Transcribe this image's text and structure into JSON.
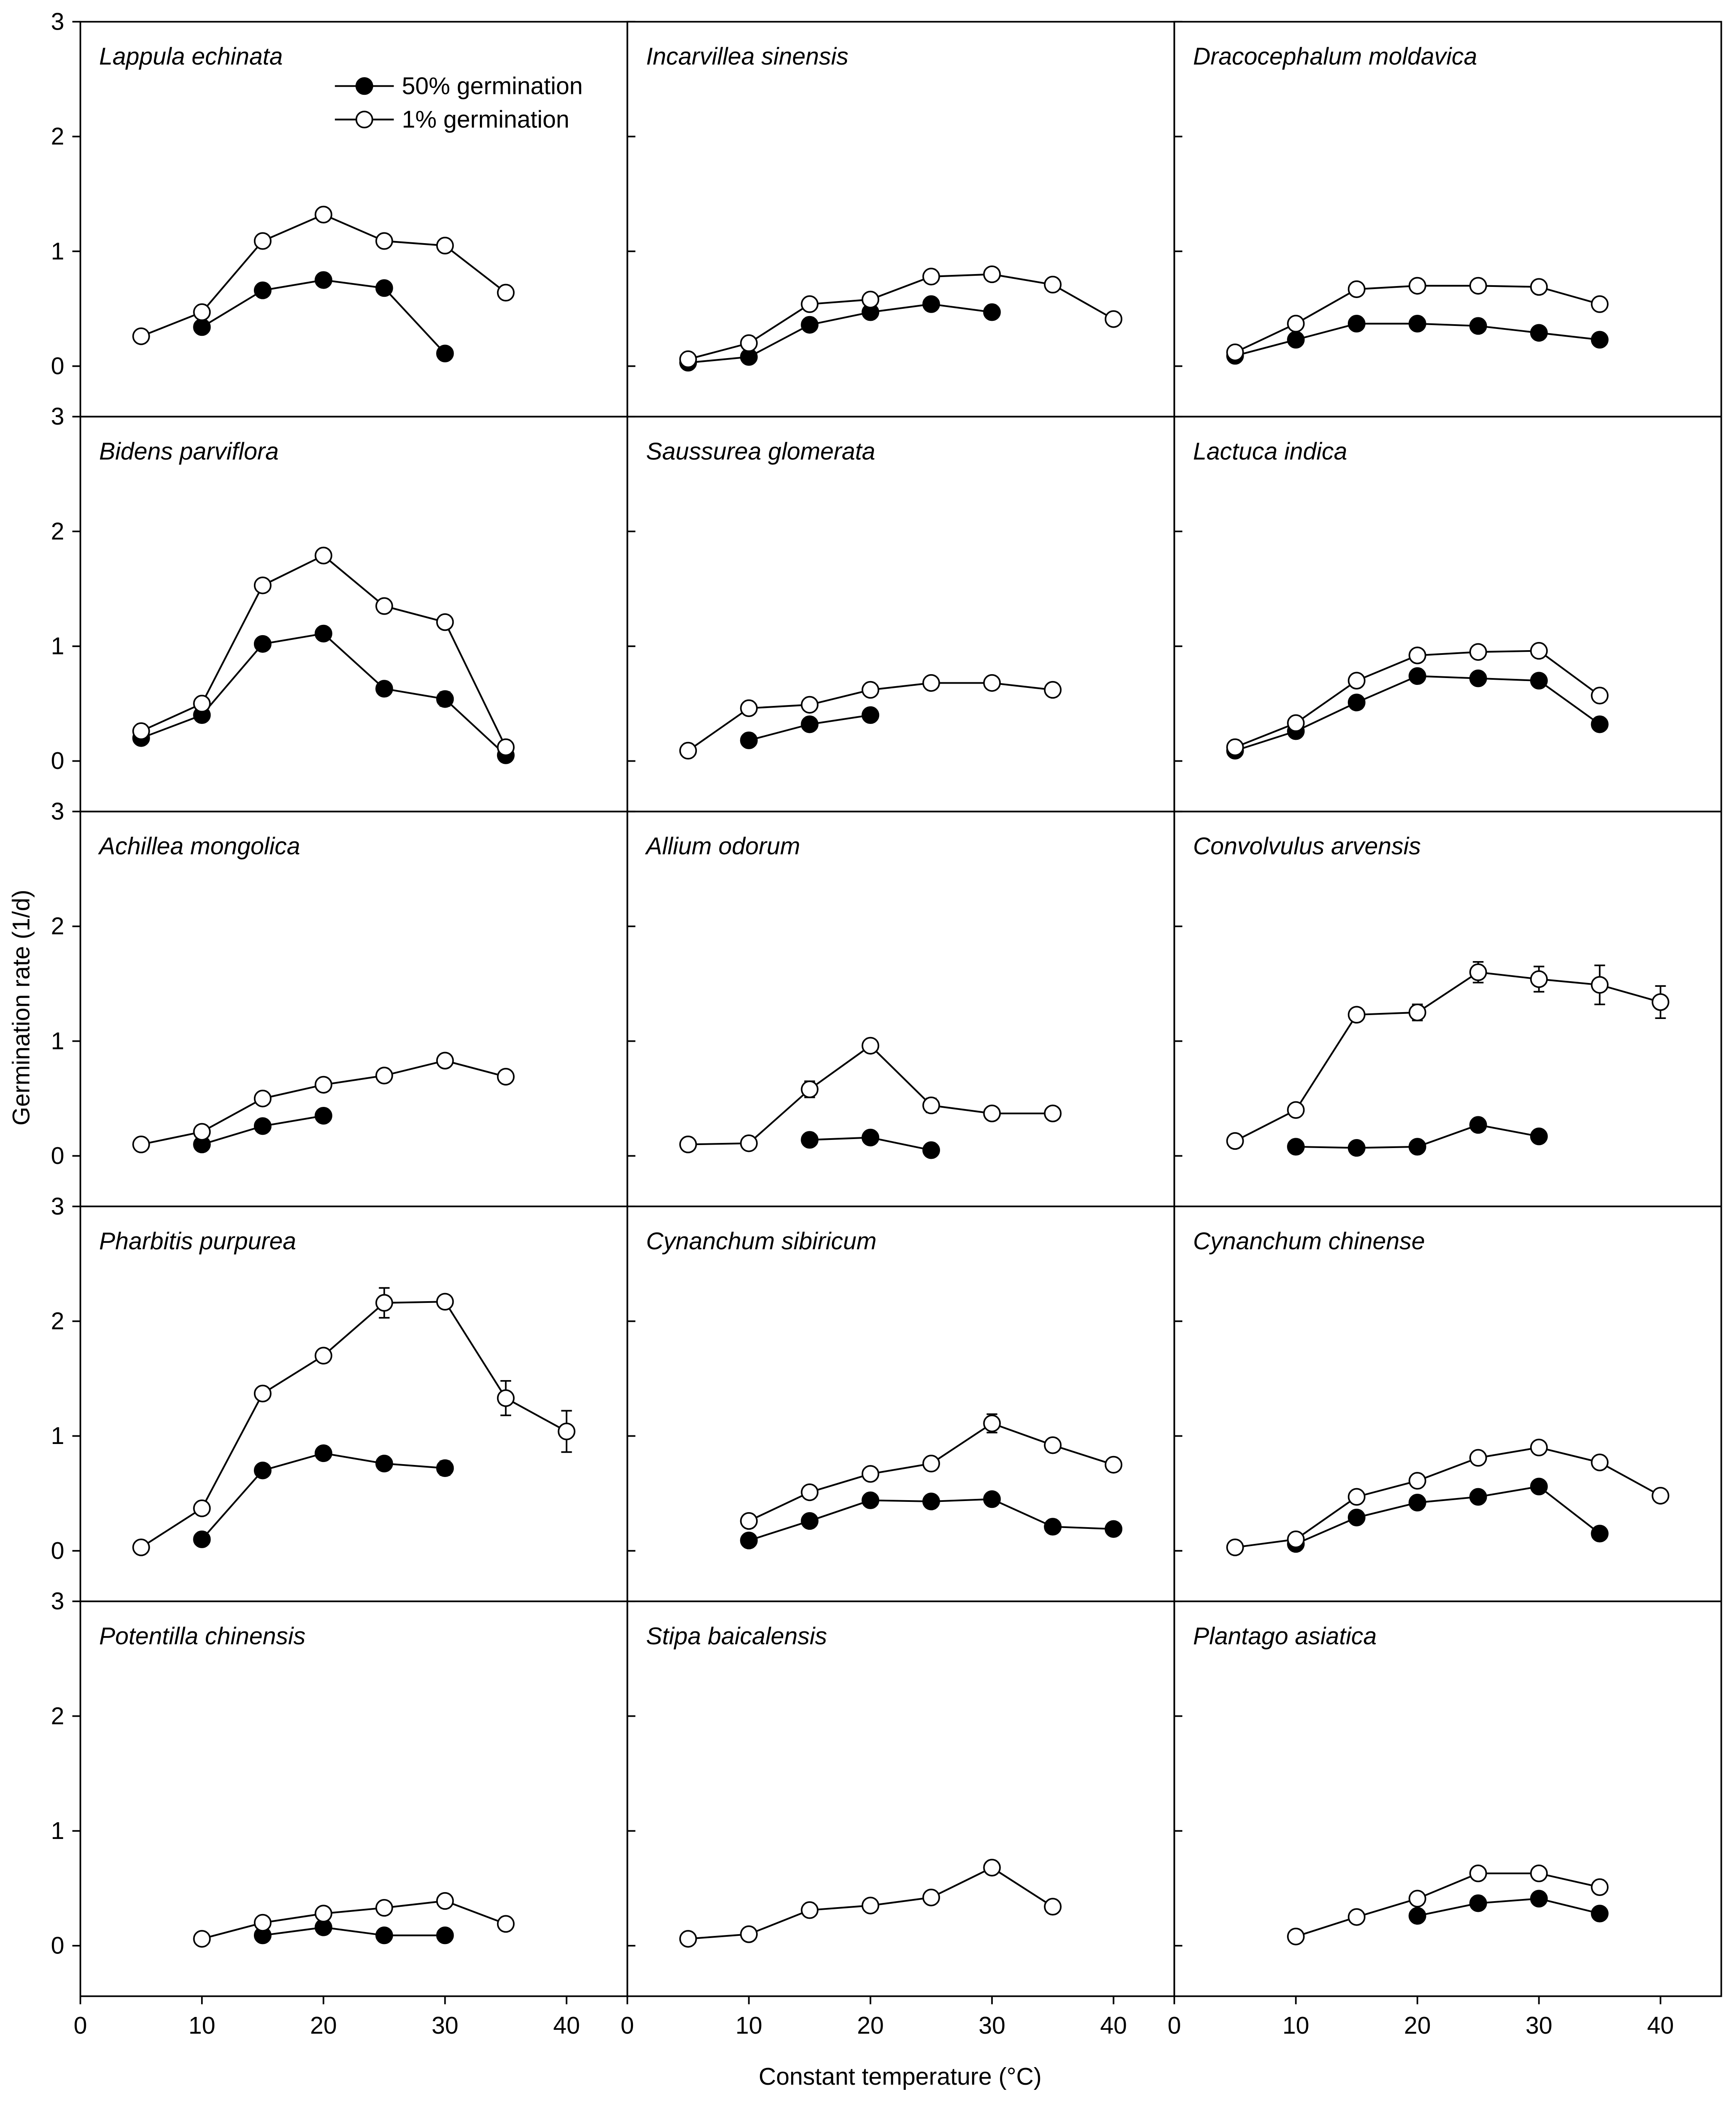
{
  "y_label": "Germination rate (1/d)",
  "x_label": "Constant temperature (°C)",
  "chart_data": [
    {
      "type": "line",
      "title": "Lappula echinata",
      "legend": "top",
      "x": [
        5,
        10,
        15,
        20,
        25,
        30,
        35,
        40
      ],
      "xlim": [
        0,
        45
      ],
      "ylim": [
        -0.44,
        3
      ],
      "yticks": [
        0,
        1,
        2,
        3
      ],
      "series": [
        {
          "name": "50% germination",
          "color": "#000000",
          "marker_fill": "#000000",
          "values": [
            null,
            0.34,
            0.66,
            0.75,
            0.68,
            0.11,
            null,
            null
          ]
        },
        {
          "name": "1% germination",
          "color": "#000000",
          "marker_fill": "#ffffff",
          "values": [
            0.26,
            0.47,
            1.09,
            1.32,
            1.09,
            1.05,
            0.64,
            null
          ]
        }
      ]
    },
    {
      "type": "line",
      "title": "Incarvillea sinensis",
      "x": [
        5,
        10,
        15,
        20,
        25,
        30,
        35,
        40
      ],
      "xlim": [
        0,
        45
      ],
      "ylim": [
        -0.44,
        3
      ],
      "yticks": [
        0,
        1,
        2,
        3
      ],
      "series": [
        {
          "color": "#000000",
          "marker_fill": "#000000",
          "values": [
            0.03,
            0.08,
            0.36,
            0.47,
            0.54,
            0.47,
            null,
            null
          ]
        },
        {
          "color": "#000000",
          "marker_fill": "#ffffff",
          "values": [
            0.06,
            0.2,
            0.54,
            0.58,
            0.78,
            0.8,
            0.71,
            0.41
          ]
        }
      ]
    },
    {
      "type": "line",
      "title": "Dracocephalum moldavica",
      "x": [
        5,
        10,
        15,
        20,
        25,
        30,
        35,
        40
      ],
      "xlim": [
        0,
        45
      ],
      "ylim": [
        -0.44,
        3
      ],
      "yticks": [
        0,
        1,
        2,
        3
      ],
      "series": [
        {
          "color": "#000000",
          "marker_fill": "#000000",
          "values": [
            0.09,
            0.23,
            0.37,
            0.37,
            0.35,
            0.29,
            0.23,
            null
          ]
        },
        {
          "color": "#000000",
          "marker_fill": "#ffffff",
          "values": [
            0.12,
            0.37,
            0.67,
            0.7,
            0.7,
            0.69,
            0.54,
            null
          ]
        }
      ]
    },
    {
      "type": "line",
      "title": "Bidens parviflora",
      "x": [
        5,
        10,
        15,
        20,
        25,
        30,
        35,
        40
      ],
      "xlim": [
        0,
        45
      ],
      "ylim": [
        -0.44,
        3
      ],
      "yticks": [
        0,
        1,
        2,
        3
      ],
      "series": [
        {
          "color": "#000000",
          "marker_fill": "#000000",
          "values": [
            0.2,
            0.4,
            1.02,
            1.11,
            0.63,
            0.54,
            0.05,
            null
          ],
          "errors": [
            null,
            null,
            null,
            null,
            null,
            0.06,
            null,
            null
          ]
        },
        {
          "color": "#000000",
          "marker_fill": "#ffffff",
          "values": [
            0.26,
            0.5,
            1.53,
            1.79,
            1.35,
            1.21,
            0.12,
            null
          ]
        }
      ]
    },
    {
      "type": "line",
      "title": "Saussurea glomerata",
      "x": [
        5,
        10,
        15,
        20,
        25,
        30,
        35,
        40
      ],
      "xlim": [
        0,
        45
      ],
      "ylim": [
        -0.44,
        3
      ],
      "yticks": [
        0,
        1,
        2,
        3
      ],
      "series": [
        {
          "color": "#000000",
          "marker_fill": "#000000",
          "values": [
            null,
            0.18,
            0.32,
            0.4,
            null,
            null,
            null,
            null
          ]
        },
        {
          "color": "#000000",
          "marker_fill": "#ffffff",
          "values": [
            0.09,
            0.46,
            0.49,
            0.62,
            0.68,
            0.68,
            0.62,
            null
          ]
        }
      ]
    },
    {
      "type": "line",
      "title": "Lactuca indica",
      "x": [
        5,
        10,
        15,
        20,
        25,
        30,
        35,
        40
      ],
      "xlim": [
        0,
        45
      ],
      "ylim": [
        -0.44,
        3
      ],
      "yticks": [
        0,
        1,
        2,
        3
      ],
      "series": [
        {
          "color": "#000000",
          "marker_fill": "#000000",
          "values": [
            0.09,
            0.26,
            0.51,
            0.74,
            0.72,
            0.7,
            0.32,
            null
          ]
        },
        {
          "color": "#000000",
          "marker_fill": "#ffffff",
          "values": [
            0.12,
            0.33,
            0.7,
            0.92,
            0.95,
            0.96,
            0.57,
            null
          ]
        }
      ]
    },
    {
      "type": "line",
      "title": "Achillea mongolica",
      "x": [
        5,
        10,
        15,
        20,
        25,
        30,
        35,
        40
      ],
      "xlim": [
        0,
        45
      ],
      "ylim": [
        -0.44,
        3
      ],
      "yticks": [
        0,
        1,
        2,
        3
      ],
      "series": [
        {
          "color": "#000000",
          "marker_fill": "#000000",
          "values": [
            null,
            0.1,
            0.26,
            0.35,
            null,
            null,
            null,
            null
          ]
        },
        {
          "color": "#000000",
          "marker_fill": "#ffffff",
          "values": [
            0.1,
            0.21,
            0.5,
            0.62,
            0.7,
            0.83,
            0.69,
            null
          ]
        }
      ]
    },
    {
      "type": "line",
      "title": "Allium odorum",
      "x": [
        5,
        10,
        15,
        20,
        25,
        30,
        35,
        40
      ],
      "xlim": [
        0,
        45
      ],
      "ylim": [
        -0.44,
        3
      ],
      "yticks": [
        0,
        1,
        2,
        3
      ],
      "series": [
        {
          "color": "#000000",
          "marker_fill": "#000000",
          "values": [
            null,
            null,
            0.14,
            0.16,
            0.05,
            null,
            null,
            null
          ]
        },
        {
          "color": "#000000",
          "marker_fill": "#ffffff",
          "values": [
            0.1,
            0.11,
            0.58,
            0.96,
            0.44,
            0.37,
            0.37,
            null
          ],
          "errors": [
            null,
            null,
            0.07,
            null,
            0.06,
            null,
            null,
            null
          ]
        }
      ]
    },
    {
      "type": "line",
      "title": "Convolvulus arvensis",
      "x": [
        5,
        10,
        15,
        20,
        25,
        30,
        35,
        40
      ],
      "xlim": [
        0,
        45
      ],
      "ylim": [
        -0.44,
        3
      ],
      "yticks": [
        0,
        1,
        2,
        3
      ],
      "series": [
        {
          "color": "#000000",
          "marker_fill": "#000000",
          "values": [
            null,
            0.08,
            0.07,
            0.08,
            0.27,
            0.17,
            null,
            null
          ]
        },
        {
          "color": "#000000",
          "marker_fill": "#ffffff",
          "values": [
            0.13,
            0.4,
            1.23,
            1.25,
            1.6,
            1.54,
            1.49,
            1.34
          ],
          "errors": [
            null,
            null,
            null,
            0.07,
            0.09,
            0.11,
            0.17,
            0.14
          ]
        }
      ]
    },
    {
      "type": "line",
      "title": "Pharbitis purpurea",
      "x": [
        5,
        10,
        15,
        20,
        25,
        30,
        35,
        40
      ],
      "xlim": [
        0,
        45
      ],
      "ylim": [
        -0.44,
        3
      ],
      "yticks": [
        0,
        1,
        2,
        3
      ],
      "series": [
        {
          "color": "#000000",
          "marker_fill": "#000000",
          "values": [
            null,
            0.1,
            0.7,
            0.85,
            0.76,
            0.72,
            null,
            null
          ],
          "errors": [
            null,
            null,
            null,
            null,
            null,
            0.06,
            null,
            null
          ]
        },
        {
          "color": "#000000",
          "marker_fill": "#ffffff",
          "values": [
            0.03,
            0.37,
            1.37,
            1.7,
            2.16,
            2.17,
            1.33,
            1.04
          ],
          "errors": [
            null,
            null,
            null,
            null,
            0.13,
            null,
            0.15,
            0.18
          ]
        }
      ]
    },
    {
      "type": "line",
      "title": "Cynanchum sibiricum",
      "x": [
        5,
        10,
        15,
        20,
        25,
        30,
        35,
        40
      ],
      "xlim": [
        0,
        45
      ],
      "ylim": [
        -0.44,
        3
      ],
      "yticks": [
        0,
        1,
        2,
        3
      ],
      "series": [
        {
          "color": "#000000",
          "marker_fill": "#000000",
          "values": [
            null,
            0.09,
            0.26,
            0.44,
            0.43,
            0.45,
            0.21,
            0.19
          ]
        },
        {
          "color": "#000000",
          "marker_fill": "#ffffff",
          "values": [
            null,
            0.26,
            0.51,
            0.67,
            0.76,
            1.11,
            0.92,
            0.75
          ],
          "errors": [
            null,
            null,
            0.05,
            null,
            null,
            0.08,
            0.05,
            null
          ]
        }
      ]
    },
    {
      "type": "line",
      "title": "Cynanchum chinense",
      "x": [
        5,
        10,
        15,
        20,
        25,
        30,
        35,
        40
      ],
      "xlim": [
        0,
        45
      ],
      "ylim": [
        -0.44,
        3
      ],
      "yticks": [
        0,
        1,
        2,
        3
      ],
      "series": [
        {
          "color": "#000000",
          "marker_fill": "#000000",
          "values": [
            null,
            0.06,
            0.29,
            0.42,
            0.47,
            0.56,
            0.15,
            null
          ]
        },
        {
          "color": "#000000",
          "marker_fill": "#ffffff",
          "values": [
            0.03,
            0.1,
            0.47,
            0.61,
            0.81,
            0.9,
            0.77,
            0.48
          ]
        }
      ]
    },
    {
      "type": "line",
      "title": "Potentilla chinensis",
      "x": [
        5,
        10,
        15,
        20,
        25,
        30,
        35,
        40
      ],
      "xlim": [
        0,
        45
      ],
      "ylim": [
        -0.44,
        3
      ],
      "yticks": [
        0,
        1,
        2,
        3
      ],
      "xticks": [
        0,
        10,
        20,
        30,
        40
      ],
      "series": [
        {
          "color": "#000000",
          "marker_fill": "#000000",
          "values": [
            null,
            null,
            0.09,
            0.16,
            0.09,
            0.09,
            null,
            null
          ]
        },
        {
          "color": "#000000",
          "marker_fill": "#ffffff",
          "values": [
            null,
            0.06,
            0.2,
            0.28,
            0.33,
            0.39,
            0.19,
            null
          ]
        }
      ]
    },
    {
      "type": "line",
      "title": "Stipa baicalensis",
      "x": [
        5,
        10,
        15,
        20,
        25,
        30,
        35,
        40
      ],
      "xlim": [
        0,
        45
      ],
      "ylim": [
        -0.44,
        3
      ],
      "yticks": [
        0,
        1,
        2,
        3
      ],
      "xticks": [
        0,
        10,
        20,
        30,
        40
      ],
      "series": [
        {
          "color": "#000000",
          "marker_fill": "#ffffff",
          "values": [
            0.06,
            0.1,
            0.31,
            0.35,
            0.42,
            0.68,
            0.34,
            null
          ]
        }
      ]
    },
    {
      "type": "line",
      "title": "Plantago asiatica",
      "x": [
        5,
        10,
        15,
        20,
        25,
        30,
        35,
        40
      ],
      "xlim": [
        0,
        45
      ],
      "ylim": [
        -0.44,
        3
      ],
      "yticks": [
        0,
        1,
        2,
        3
      ],
      "xticks": [
        0,
        10,
        20,
        30,
        40
      ],
      "series": [
        {
          "color": "#000000",
          "marker_fill": "#000000",
          "values": [
            null,
            null,
            null,
            0.26,
            0.37,
            0.41,
            0.28,
            null
          ]
        },
        {
          "color": "#000000",
          "marker_fill": "#ffffff",
          "values": [
            null,
            0.08,
            0.25,
            0.41,
            0.63,
            0.63,
            0.51,
            null
          ]
        }
      ]
    }
  ]
}
